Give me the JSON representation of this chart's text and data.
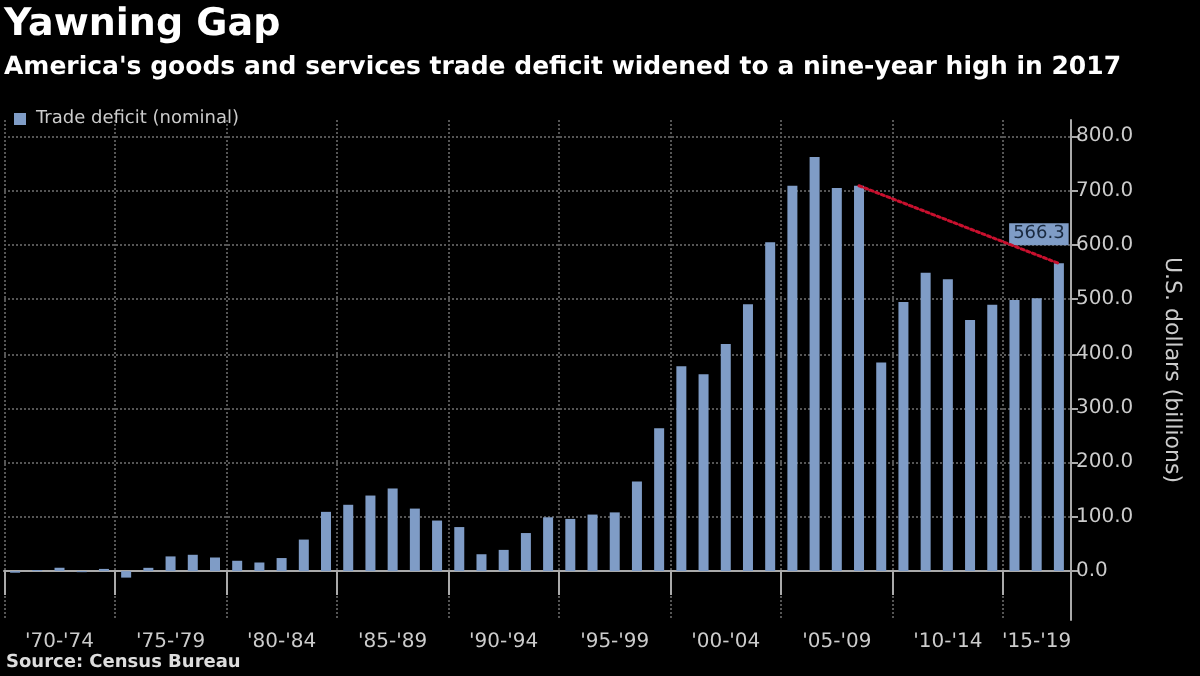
{
  "chart_data": {
    "type": "bar",
    "title": "Yawning Gap",
    "subtitle": "America's goods and services trade deficit widened to a nine-year high in 2017",
    "ylabel": "U.S. dollars (billions)",
    "annotations": [
      "Source: Census Bureau"
    ],
    "categories": [
      null,
      null,
      "'70-'74",
      null,
      null,
      null,
      null,
      "'75-'79",
      null,
      null,
      null,
      null,
      "'80-'84",
      null,
      null,
      null,
      null,
      "'85-'89",
      null,
      null,
      null,
      null,
      "'90-'94",
      null,
      null,
      null,
      null,
      "'95-'99",
      null,
      null,
      null,
      null,
      "'00-'04",
      null,
      null,
      null,
      null,
      "'05-'09",
      null,
      null,
      null,
      null,
      "'10-'14",
      null,
      null,
      null,
      "'15-'19",
      null
    ],
    "series": [
      {
        "name": "Trade deficit (nominal)",
        "color": "#7f9cc6",
        "values": [
          -3,
          2,
          6,
          -2,
          4,
          -12,
          6,
          27,
          30,
          25,
          19,
          16,
          24,
          58,
          109,
          122,
          139,
          152,
          115,
          93,
          81,
          31,
          39,
          70,
          99,
          96,
          104,
          108,
          165,
          263,
          377,
          362,
          418,
          491,
          605,
          709,
          762,
          705,
          709,
          384,
          495,
          549,
          537,
          462,
          490,
          499,
          502,
          566.3
        ],
        "value_labels": [
          null,
          null,
          null,
          null,
          null,
          null,
          null,
          null,
          null,
          null,
          null,
          null,
          null,
          null,
          null,
          null,
          null,
          null,
          null,
          null,
          null,
          null,
          null,
          null,
          null,
          null,
          null,
          null,
          null,
          null,
          null,
          null,
          null,
          null,
          null,
          null,
          null,
          null,
          null,
          null,
          null,
          null,
          null,
          null,
          null,
          null,
          null,
          "566.3"
        ]
      },
      {
        "type": "line",
        "color": "#c8102e",
        "line_style": "dotted",
        "values": [
          null,
          null,
          null,
          null,
          null,
          null,
          null,
          null,
          null,
          null,
          null,
          null,
          null,
          null,
          null,
          null,
          null,
          null,
          null,
          null,
          null,
          null,
          null,
          null,
          null,
          null,
          null,
          null,
          null,
          null,
          null,
          null,
          null,
          null,
          null,
          null,
          null,
          null,
          709,
          null,
          null,
          null,
          null,
          null,
          null,
          null,
          null,
          566
        ]
      }
    ],
    "ylim": [
      -90,
      830
    ],
    "yticks": [
      {
        "value": 0,
        "label": "0.0"
      },
      {
        "value": 100,
        "label": "100.0"
      },
      {
        "value": 200,
        "label": "200.0"
      },
      {
        "value": 300,
        "label": "300.0"
      },
      {
        "value": 400,
        "label": "400.0"
      },
      {
        "value": 500,
        "label": "500.0"
      },
      {
        "value": 600,
        "label": "600.0"
      },
      {
        "value": 700,
        "label": "700.0"
      },
      {
        "value": 800,
        "label": "800.0"
      }
    ],
    "grid": true,
    "legend": "top left",
    "marker": "none"
  }
}
